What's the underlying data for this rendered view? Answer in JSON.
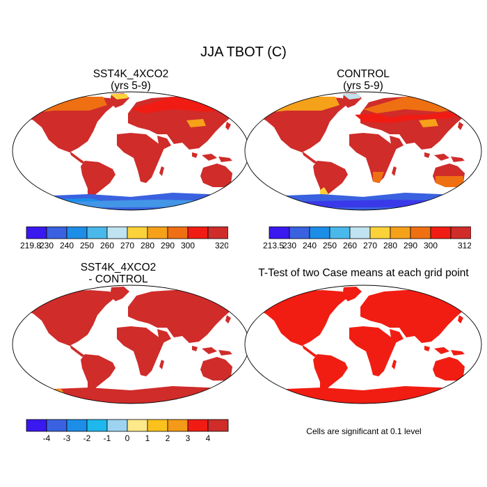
{
  "figure": {
    "title": "JJA TBOT (C)"
  },
  "colors": {
    "scale": [
      "#3a18f0",
      "#3a62e0",
      "#1c8ee8",
      "#4ab8ea",
      "#bfe3f0",
      "#fbd23a",
      "#f6a11a",
      "#ef7012",
      "#f01c14",
      "#cf2c2a"
    ],
    "diff_scale": [
      "#3a18f0",
      "#3a62e0",
      "#1c8ee8",
      "#1fb8ec",
      "#9dd3f0",
      "#fde88a",
      "#fbc21e",
      "#f39a18",
      "#f01c14",
      "#cf2c2a"
    ],
    "ocean": "#ffffff",
    "land_warm": "#d4312f",
    "ttest_land": "#f11d12"
  },
  "panels": {
    "p1": {
      "title_line1": "SST4K_4XCO2",
      "title_line2": "(yrs 5-9)"
    },
    "p2": {
      "title_line1": "CONTROL",
      "title_line2": "(yrs 5-9)"
    },
    "p3": {
      "title_line1": "SST4K_4XCO2",
      "title_line2": "- CONTROL"
    },
    "p4": {
      "title_line1": "T-Test of two Case means at each grid point",
      "note": "Cells are significant at 0.1 level"
    }
  },
  "colorbars": {
    "cb1": {
      "labels": [
        "219.8",
        "230",
        "240",
        "250",
        "260",
        "270",
        "280",
        "290",
        "300",
        "320.2"
      ]
    },
    "cb2": {
      "labels": [
        "213.5",
        "230",
        "240",
        "250",
        "260",
        "270",
        "280",
        "290",
        "300",
        "312.7"
      ]
    },
    "cb3": {
      "labels": [
        "-4",
        "-3",
        "-2",
        "-1",
        "0",
        "1",
        "2",
        "3",
        "4"
      ]
    }
  }
}
